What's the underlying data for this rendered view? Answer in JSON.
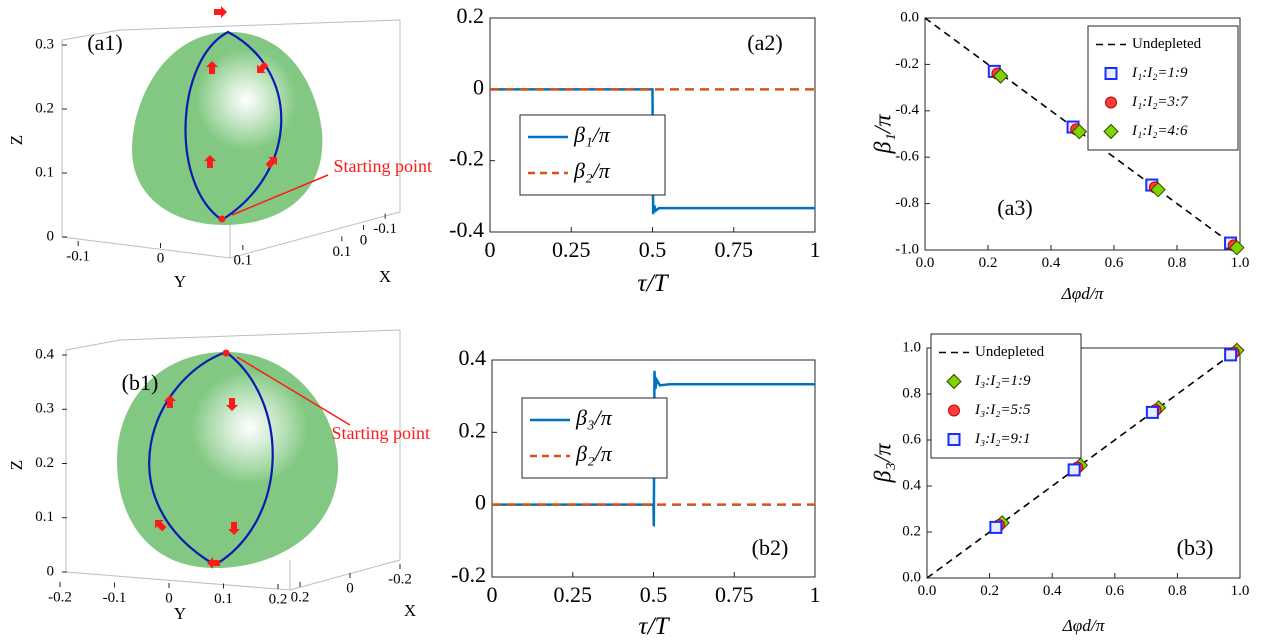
{
  "chart_data": [
    {
      "type": "surface3d",
      "panel_label": "(a1)",
      "annotation": "Starting point",
      "xlabel": "X",
      "ylabel": "Y",
      "zlabel": "Z",
      "xlim": [
        -0.15,
        0.15
      ],
      "ylim": [
        -0.15,
        0.15
      ],
      "zlim": [
        0,
        0.3
      ],
      "xticks": [
        -0.1,
        0,
        0.1
      ],
      "yticks": [
        -0.1,
        0,
        0.1
      ],
      "zticks": [
        0,
        0.1,
        0.2,
        0.3
      ],
      "color": "#6cbf6c",
      "curve_color": "#0a1ab4",
      "arrow_color": "#ff1a1a"
    },
    {
      "type": "line",
      "panel_label": "(a2)",
      "xlabel": "τ/T",
      "x": [
        0,
        0.5,
        0.502,
        0.505,
        0.51,
        0.52,
        0.55,
        0.6,
        1
      ],
      "series": [
        {
          "name": "β₁/π",
          "color": "#0072bd",
          "style": "solid",
          "values": [
            0,
            0,
            -0.35,
            -0.325,
            -0.34,
            -0.333,
            -0.333,
            -0.333,
            -0.333
          ]
        },
        {
          "name": "β₂/π",
          "color": "#d95319",
          "style": "dashed",
          "values": [
            0,
            0,
            0,
            0,
            0,
            0,
            0,
            0,
            0
          ]
        }
      ],
      "xlim": [
        0,
        1
      ],
      "ylim": [
        -0.4,
        0.2
      ],
      "xticks": [
        0,
        0.25,
        0.5,
        0.75,
        1
      ],
      "yticks": [
        -0.4,
        -0.2,
        0,
        0.2
      ],
      "legend": "center-left"
    },
    {
      "type": "scatter",
      "panel_label": "(a3)",
      "xlabel": "Δφd/π",
      "ylabel": "β₁/π",
      "series": [
        {
          "name": "Undepleted",
          "color": "#000000",
          "marker": "dashed-line",
          "x": [
            0,
            1
          ],
          "values": [
            0,
            -1
          ]
        },
        {
          "name": "I₁:I₂=1:9",
          "color": "#1a2cff",
          "marker": "square",
          "x": [
            0.22,
            0.47,
            0.72,
            0.97
          ],
          "values": [
            -0.23,
            -0.47,
            -0.72,
            -0.97
          ]
        },
        {
          "name": "I₁:I₂=3:7",
          "color": "#ff3b3b",
          "marker": "circle",
          "x": [
            0.23,
            0.48,
            0.73,
            0.98
          ],
          "values": [
            -0.24,
            -0.48,
            -0.73,
            -0.98
          ]
        },
        {
          "name": "I₁:I₂=4:6",
          "color": "#7fd400",
          "marker": "diamond",
          "x": [
            0.24,
            0.49,
            0.74,
            0.99
          ],
          "values": [
            -0.25,
            -0.49,
            -0.74,
            -0.99
          ]
        }
      ],
      "xlim": [
        0,
        1
      ],
      "ylim": [
        -1,
        0
      ],
      "xticks": [
        {
          "value": 0,
          "label": "0.0"
        },
        0.2,
        0.4,
        0.6,
        0.8,
        {
          "value": 1,
          "label": "1.0"
        }
      ],
      "yticks": [
        {
          "value": -1,
          "label": "-1.0"
        },
        -0.8,
        -0.6,
        -0.4,
        -0.2,
        {
          "value": 0,
          "label": "0.0"
        }
      ],
      "legend": "upper-right"
    },
    {
      "type": "surface3d",
      "panel_label": "(b1)",
      "annotation": "Starting point",
      "xlabel": "X",
      "ylabel": "Y",
      "zlabel": "Z",
      "xlim": [
        -0.2,
        0.2
      ],
      "ylim": [
        -0.2,
        0.2
      ],
      "zlim": [
        0,
        0.4
      ],
      "xticks": [
        -0.2,
        0,
        0.2
      ],
      "yticks": [
        -0.2,
        -0.1,
        0,
        0.1,
        0.2
      ],
      "zticks": [
        0,
        0.1,
        0.2,
        0.3,
        0.4
      ],
      "color": "#6cbf6c",
      "curve_color": "#0a1ab4",
      "arrow_color": "#ff1a1a"
    },
    {
      "type": "line",
      "panel_label": "(b2)",
      "xlabel": "τ/T",
      "x": [
        0,
        0.5,
        0.501,
        0.503,
        0.506,
        0.51,
        0.52,
        0.55,
        1
      ],
      "series": [
        {
          "name": "β₃/π",
          "color": "#0072bd",
          "style": "solid",
          "values": [
            0,
            0,
            -0.06,
            0.37,
            0.32,
            0.345,
            0.33,
            0.333,
            0.333
          ]
        },
        {
          "name": "β₂/π",
          "color": "#d95319",
          "style": "dashed",
          "values": [
            0,
            0,
            0,
            0,
            0,
            0,
            0,
            0,
            0
          ]
        }
      ],
      "xlim": [
        0,
        1
      ],
      "ylim": [
        -0.2,
        0.4
      ],
      "xticks": [
        0,
        0.25,
        0.5,
        0.75,
        1
      ],
      "yticks": [
        -0.2,
        0,
        0.2,
        0.4
      ],
      "legend": "upper-left"
    },
    {
      "type": "scatter",
      "panel_label": "(b3)",
      "xlabel": "Δφd/π",
      "ylabel": "β₃/π",
      "series": [
        {
          "name": "Undepleted",
          "color": "#000000",
          "marker": "dashed-line",
          "x": [
            0,
            1
          ],
          "values": [
            0,
            1
          ]
        },
        {
          "name": "I₃:I₂=1:9",
          "color": "#7fd400",
          "marker": "diamond",
          "x": [
            0.24,
            0.49,
            0.74,
            0.99
          ],
          "values": [
            0.24,
            0.49,
            0.74,
            0.99
          ]
        },
        {
          "name": "I₃:I₂=5:5",
          "color": "#ff3b3b",
          "marker": "circle",
          "x": [
            0.23,
            0.48,
            0.73,
            0.98
          ],
          "values": [
            0.23,
            0.48,
            0.73,
            0.98
          ]
        },
        {
          "name": "I₃:I₂=9:1",
          "color": "#1a2cff",
          "marker": "square",
          "x": [
            0.22,
            0.47,
            0.72,
            0.97
          ],
          "values": [
            0.22,
            0.47,
            0.72,
            0.97
          ]
        }
      ],
      "xlim": [
        0,
        1
      ],
      "ylim": [
        0,
        1
      ],
      "xticks": [
        {
          "value": 0,
          "label": "0.0"
        },
        0.2,
        0.4,
        0.6,
        0.8,
        {
          "value": 1,
          "label": "1.0"
        }
      ],
      "yticks": [
        {
          "value": 0,
          "label": "0.0"
        },
        0.2,
        0.4,
        0.6,
        0.8,
        {
          "value": 1,
          "label": "1.0"
        }
      ],
      "legend": "upper-left"
    }
  ]
}
